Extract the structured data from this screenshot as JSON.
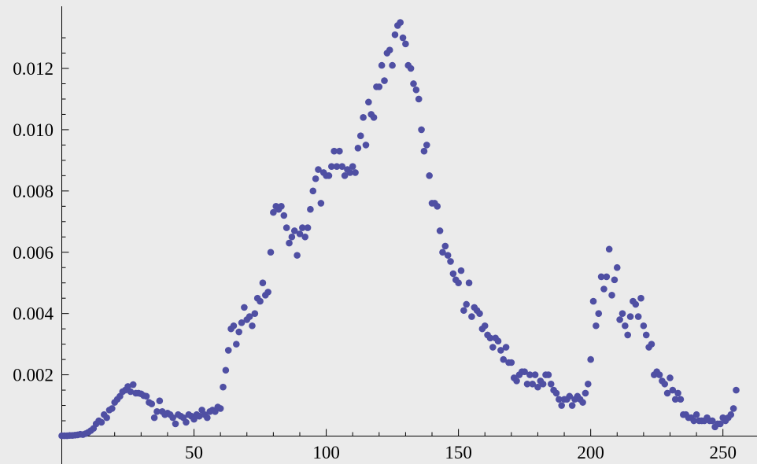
{
  "chart_data": {
    "type": "scatter",
    "title": "",
    "xlabel": "",
    "ylabel": "",
    "xlim": [
      0,
      256
    ],
    "ylim": [
      0,
      0.0138
    ],
    "x_ticks": [
      50,
      100,
      150,
      200,
      250
    ],
    "x_tick_labels": [
      "50",
      "100",
      "150",
      "200",
      "250"
    ],
    "y_ticks": [
      0.002,
      0.004,
      0.006,
      0.008,
      0.01,
      0.012
    ],
    "y_tick_labels": [
      "0.002",
      "0.004",
      "0.006",
      "0.008",
      "0.010",
      "0.012"
    ],
    "grid": false,
    "marker_color": "#4f4fa3",
    "background": "#ebebeb",
    "series": [
      {
        "points": [
          [
            0,
            1e-05
          ],
          [
            1,
            1e-05
          ],
          [
            2,
            1e-05
          ],
          [
            3,
            2e-05
          ],
          [
            4,
            2e-05
          ],
          [
            5,
            3e-05
          ],
          [
            6,
            4e-05
          ],
          [
            7,
            6e-05
          ],
          [
            8,
            5e-05
          ],
          [
            9,
            8e-05
          ],
          [
            10,
            0.00012
          ],
          [
            11,
            0.00018
          ],
          [
            12,
            0.00025
          ],
          [
            13,
            0.0004
          ],
          [
            14,
            0.0005
          ],
          [
            15,
            0.00045
          ],
          [
            16,
            0.0007
          ],
          [
            17,
            0.0006
          ],
          [
            18,
            0.00085
          ],
          [
            19,
            0.0009
          ],
          [
            20,
            0.0011
          ],
          [
            21,
            0.0012
          ],
          [
            22,
            0.0013
          ],
          [
            23,
            0.00145
          ],
          [
            24,
            0.0015
          ],
          [
            25,
            0.00162
          ],
          [
            26,
            0.00145
          ],
          [
            27,
            0.00168
          ],
          [
            28,
            0.0014
          ],
          [
            29,
            0.0014
          ],
          [
            30,
            0.00138
          ],
          [
            31,
            0.00132
          ],
          [
            32,
            0.0013
          ],
          [
            33,
            0.0011
          ],
          [
            34,
            0.00105
          ],
          [
            35,
            0.0006
          ],
          [
            36,
            0.0008
          ],
          [
            37,
            0.00115
          ],
          [
            38,
            0.0008
          ],
          [
            39,
            0.0007
          ],
          [
            40,
            0.00075
          ],
          [
            41,
            0.0007
          ],
          [
            42,
            0.0006
          ],
          [
            43,
            0.0004
          ],
          [
            44,
            0.0007
          ],
          [
            45,
            0.00065
          ],
          [
            46,
            0.0006
          ],
          [
            47,
            0.00045
          ],
          [
            48,
            0.0007
          ],
          [
            49,
            0.00065
          ],
          [
            50,
            0.00055
          ],
          [
            51,
            0.0007
          ],
          [
            52,
            0.00065
          ],
          [
            53,
            0.00085
          ],
          [
            54,
            0.0007
          ],
          [
            55,
            0.0006
          ],
          [
            56,
            0.0008
          ],
          [
            57,
            0.00085
          ],
          [
            58,
            0.0008
          ],
          [
            59,
            0.00095
          ],
          [
            60,
            0.0009
          ],
          [
            61,
            0.0016
          ],
          [
            62,
            0.00215
          ],
          [
            63,
            0.0028
          ],
          [
            64,
            0.0035
          ],
          [
            65,
            0.0036
          ],
          [
            66,
            0.003
          ],
          [
            67,
            0.0034
          ],
          [
            68,
            0.0037
          ],
          [
            69,
            0.0042
          ],
          [
            70,
            0.0038
          ],
          [
            71,
            0.0039
          ],
          [
            72,
            0.0036
          ],
          [
            73,
            0.004
          ],
          [
            74,
            0.0045
          ],
          [
            75,
            0.0044
          ],
          [
            76,
            0.005
          ],
          [
            77,
            0.0046
          ],
          [
            78,
            0.0047
          ],
          [
            79,
            0.006
          ],
          [
            80,
            0.0073
          ],
          [
            81,
            0.0075
          ],
          [
            82,
            0.0074
          ],
          [
            83,
            0.0075
          ],
          [
            84,
            0.0072
          ],
          [
            85,
            0.0068
          ],
          [
            86,
            0.0063
          ],
          [
            87,
            0.0065
          ],
          [
            88,
            0.0067
          ],
          [
            89,
            0.0059
          ],
          [
            90,
            0.0066
          ],
          [
            91,
            0.0068
          ],
          [
            92,
            0.0065
          ],
          [
            93,
            0.0068
          ],
          [
            94,
            0.0074
          ],
          [
            95,
            0.008
          ],
          [
            96,
            0.0084
          ],
          [
            97,
            0.0087
          ],
          [
            98,
            0.0076
          ],
          [
            99,
            0.0086
          ],
          [
            100,
            0.0085
          ],
          [
            101,
            0.0085
          ],
          [
            102,
            0.0088
          ],
          [
            103,
            0.0093
          ],
          [
            104,
            0.0088
          ],
          [
            105,
            0.0093
          ],
          [
            106,
            0.0088
          ],
          [
            107,
            0.0085
          ],
          [
            108,
            0.0087
          ],
          [
            109,
            0.0086
          ],
          [
            110,
            0.0088
          ],
          [
            111,
            0.0086
          ],
          [
            112,
            0.0094
          ],
          [
            113,
            0.0098
          ],
          [
            114,
            0.0104
          ],
          [
            115,
            0.0095
          ],
          [
            116,
            0.0109
          ],
          [
            117,
            0.0105
          ],
          [
            118,
            0.0104
          ],
          [
            119,
            0.0114
          ],
          [
            120,
            0.0114
          ],
          [
            121,
            0.0121
          ],
          [
            122,
            0.0116
          ],
          [
            123,
            0.0125
          ],
          [
            124,
            0.0126
          ],
          [
            125,
            0.0121
          ],
          [
            126,
            0.0131
          ],
          [
            127,
            0.0134
          ],
          [
            128,
            0.0135
          ],
          [
            129,
            0.013
          ],
          [
            130,
            0.0128
          ],
          [
            131,
            0.0121
          ],
          [
            132,
            0.012
          ],
          [
            133,
            0.0115
          ],
          [
            134,
            0.0113
          ],
          [
            135,
            0.011
          ],
          [
            136,
            0.01
          ],
          [
            137,
            0.0093
          ],
          [
            138,
            0.0095
          ],
          [
            139,
            0.0085
          ],
          [
            140,
            0.0076
          ],
          [
            141,
            0.0076
          ],
          [
            142,
            0.0075
          ],
          [
            143,
            0.0067
          ],
          [
            144,
            0.006
          ],
          [
            145,
            0.0062
          ],
          [
            146,
            0.0059
          ],
          [
            147,
            0.0057
          ],
          [
            148,
            0.0053
          ],
          [
            149,
            0.0051
          ],
          [
            150,
            0.005
          ],
          [
            151,
            0.0054
          ],
          [
            152,
            0.0041
          ],
          [
            153,
            0.0043
          ],
          [
            154,
            0.005
          ],
          [
            155,
            0.0039
          ],
          [
            156,
            0.0042
          ],
          [
            157,
            0.0041
          ],
          [
            158,
            0.004
          ],
          [
            159,
            0.0035
          ],
          [
            160,
            0.0036
          ],
          [
            161,
            0.0033
          ],
          [
            162,
            0.0032
          ],
          [
            163,
            0.0029
          ],
          [
            164,
            0.0032
          ],
          [
            165,
            0.0031
          ],
          [
            166,
            0.0028
          ],
          [
            167,
            0.0025
          ],
          [
            168,
            0.0029
          ],
          [
            169,
            0.0024
          ],
          [
            170,
            0.0024
          ],
          [
            171,
            0.0019
          ],
          [
            172,
            0.0018
          ],
          [
            173,
            0.002
          ],
          [
            174,
            0.0021
          ],
          [
            175,
            0.0021
          ],
          [
            176,
            0.0017
          ],
          [
            177,
            0.002
          ],
          [
            178,
            0.0017
          ],
          [
            179,
            0.002
          ],
          [
            180,
            0.0016
          ],
          [
            181,
            0.0018
          ],
          [
            182,
            0.0017
          ],
          [
            183,
            0.002
          ],
          [
            184,
            0.002
          ],
          [
            185,
            0.0017
          ],
          [
            186,
            0.0015
          ],
          [
            187,
            0.0014
          ],
          [
            188,
            0.0012
          ],
          [
            189,
            0.001
          ],
          [
            190,
            0.0012
          ],
          [
            191,
            0.0012
          ],
          [
            192,
            0.0013
          ],
          [
            193,
            0.001
          ],
          [
            194,
            0.0012
          ],
          [
            195,
            0.0013
          ],
          [
            196,
            0.0012
          ],
          [
            197,
            0.0011
          ],
          [
            198,
            0.0014
          ],
          [
            199,
            0.0017
          ],
          [
            200,
            0.0025
          ],
          [
            201,
            0.0044
          ],
          [
            202,
            0.0036
          ],
          [
            203,
            0.004
          ],
          [
            204,
            0.0052
          ],
          [
            205,
            0.0048
          ],
          [
            206,
            0.0052
          ],
          [
            207,
            0.0061
          ],
          [
            208,
            0.0046
          ],
          [
            209,
            0.0051
          ],
          [
            210,
            0.0055
          ],
          [
            211,
            0.0038
          ],
          [
            212,
            0.004
          ],
          [
            213,
            0.0036
          ],
          [
            214,
            0.0033
          ],
          [
            215,
            0.0039
          ],
          [
            216,
            0.0044
          ],
          [
            217,
            0.0043
          ],
          [
            218,
            0.0039
          ],
          [
            219,
            0.0045
          ],
          [
            220,
            0.0036
          ],
          [
            221,
            0.0033
          ],
          [
            222,
            0.0029
          ],
          [
            223,
            0.003
          ],
          [
            224,
            0.002
          ],
          [
            225,
            0.0021
          ],
          [
            226,
            0.002
          ],
          [
            227,
            0.0018
          ],
          [
            228,
            0.0017
          ],
          [
            229,
            0.0014
          ],
          [
            230,
            0.0019
          ],
          [
            231,
            0.0015
          ],
          [
            232,
            0.0012
          ],
          [
            233,
            0.0014
          ],
          [
            234,
            0.0012
          ],
          [
            235,
            0.0007
          ],
          [
            236,
            0.0007
          ],
          [
            237,
            0.0006
          ],
          [
            238,
            0.0006
          ],
          [
            239,
            0.0005
          ],
          [
            240,
            0.0007
          ],
          [
            241,
            0.0005
          ],
          [
            242,
            0.0005
          ],
          [
            243,
            0.0005
          ],
          [
            244,
            0.0006
          ],
          [
            245,
            0.0005
          ],
          [
            246,
            0.0005
          ],
          [
            247,
            0.0003
          ],
          [
            248,
            0.0004
          ],
          [
            249,
            0.0004
          ],
          [
            250,
            0.0006
          ],
          [
            251,
            0.0005
          ],
          [
            252,
            0.0006
          ],
          [
            253,
            0.0007
          ],
          [
            254,
            0.0009
          ],
          [
            255,
            0.0015
          ]
        ]
      }
    ]
  }
}
